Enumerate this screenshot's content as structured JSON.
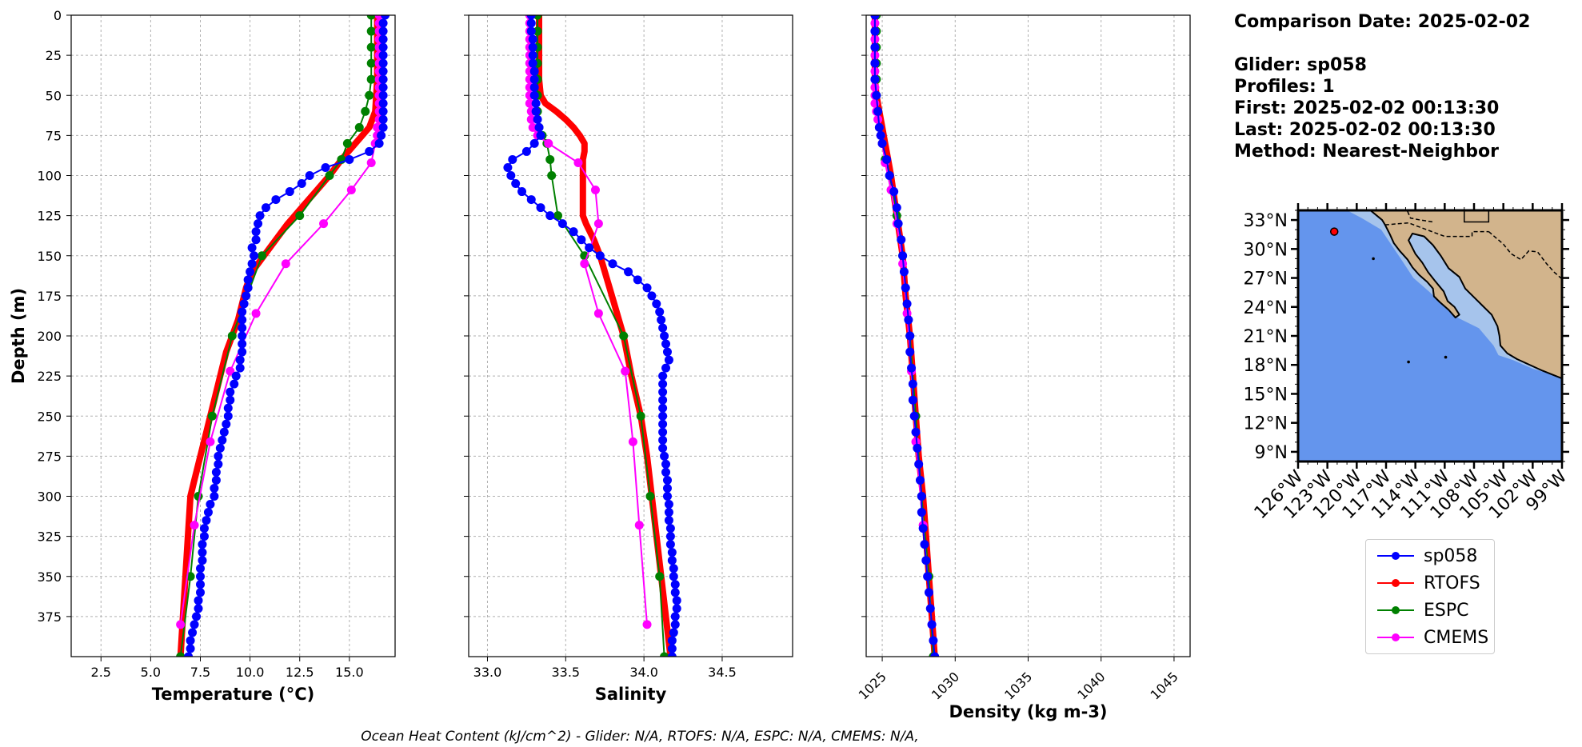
{
  "title_info": {
    "comparison_date": "Comparison Date: 2025-02-02",
    "glider": "Glider: sp058",
    "profiles": "Profiles: 1",
    "first": "First: 2025-02-02 00:13:30",
    "last": "Last: 2025-02-02 00:13:30",
    "method": "Method: Nearest-Neighbor"
  },
  "footer": "Ocean Heat Content (kJ/cm^2) - Glider: N/A,  RTOFS: N/A,  ESPC: N/A,  CMEMS: N/A,",
  "colors": {
    "sp058": "#0000ff",
    "RTOFS": "#ff0000",
    "ESPC": "#008000",
    "CMEMS": "#ff00ff",
    "cyan": "#00e5ee",
    "ocean": "#6495ed",
    "land": "#d2b48c",
    "shelf": "#a6c4ec"
  },
  "legend": [
    {
      "label": "sp058",
      "color": "#0000ff"
    },
    {
      "label": "RTOFS",
      "color": "#ff0000"
    },
    {
      "label": "ESPC",
      "color": "#008000"
    },
    {
      "label": "CMEMS",
      "color": "#ff00ff"
    }
  ],
  "map": {
    "lat_ticks": [
      "33°N",
      "30°N",
      "27°N",
      "24°N",
      "21°N",
      "18°N",
      "15°N",
      "12°N",
      "9°N"
    ],
    "lat_values": [
      33,
      30,
      27,
      24,
      21,
      18,
      15,
      12,
      9
    ],
    "lon_ticks": [
      "126°W",
      "123°W",
      "120°W",
      "117°W",
      "114°W",
      "111°W",
      "108°W",
      "105°W",
      "102°W",
      "99°W"
    ],
    "lon_values": [
      -126,
      -123,
      -120,
      -117,
      -114,
      -111,
      -108,
      -105,
      -102,
      -99
    ],
    "extent": {
      "lon": [
        -126,
        -99
      ],
      "lat": [
        8,
        34
      ]
    },
    "glider_position": {
      "lon": -122.3,
      "lat": 31.8
    }
  },
  "chart_data": [
    {
      "type": "line",
      "xlabel": "Temperature (°C)",
      "ylabel": "Depth (m)",
      "xlim": [
        1.0,
        17.3
      ],
      "ylim": [
        400,
        0
      ],
      "xticks": [
        2.5,
        5.0,
        7.5,
        10.0,
        12.5,
        15.0
      ],
      "yticks": [
        0,
        25,
        50,
        75,
        100,
        125,
        150,
        175,
        200,
        225,
        250,
        275,
        300,
        325,
        350,
        375
      ],
      "grid": true,
      "series": [
        {
          "name": "sp058",
          "depth": [
            0,
            5,
            10,
            15,
            20,
            25,
            30,
            35,
            40,
            45,
            50,
            55,
            60,
            65,
            70,
            75,
            80,
            85,
            90,
            95,
            100,
            105,
            110,
            115,
            120,
            125,
            130,
            135,
            140,
            145,
            150,
            155,
            160,
            165,
            170,
            175,
            180,
            185,
            190,
            195,
            200,
            205,
            210,
            215,
            220,
            225,
            230,
            235,
            240,
            245,
            250,
            255,
            260,
            265,
            270,
            275,
            280,
            285,
            290,
            295,
            300,
            305,
            310,
            315,
            320,
            325,
            330,
            335,
            340,
            345,
            350,
            355,
            360,
            365,
            370,
            375,
            380,
            385,
            390,
            395,
            400
          ],
          "values": [
            16.8,
            16.7,
            16.7,
            16.7,
            16.7,
            16.7,
            16.7,
            16.7,
            16.7,
            16.7,
            16.7,
            16.7,
            16.7,
            16.7,
            16.7,
            16.6,
            16.5,
            16.0,
            15.0,
            13.8,
            13.0,
            12.6,
            12.0,
            11.3,
            10.8,
            10.5,
            10.4,
            10.3,
            10.3,
            10.1,
            10.2,
            10.1,
            10.0,
            9.9,
            9.9,
            9.8,
            9.7,
            9.6,
            9.6,
            9.6,
            9.6,
            9.6,
            9.6,
            9.5,
            9.5,
            9.3,
            9.2,
            9.0,
            9.0,
            8.9,
            8.9,
            8.8,
            8.7,
            8.6,
            8.5,
            8.4,
            8.4,
            8.3,
            8.3,
            8.2,
            8.2,
            8.0,
            7.9,
            7.8,
            7.7,
            7.7,
            7.6,
            7.6,
            7.6,
            7.5,
            7.5,
            7.5,
            7.5,
            7.4,
            7.4,
            7.3,
            7.2,
            7.1,
            7.0,
            7.0,
            6.9
          ]
        },
        {
          "name": "RTOFS",
          "depth": [
            0,
            20,
            40,
            60,
            70,
            80,
            90,
            100,
            110,
            120,
            130,
            140,
            150,
            160,
            170,
            180,
            190,
            200,
            210,
            220,
            230,
            240,
            250,
            260,
            270,
            280,
            290,
            300,
            320,
            340,
            360,
            380,
            400
          ],
          "values": [
            16.4,
            16.4,
            16.4,
            16.3,
            16.0,
            15.3,
            14.6,
            14.0,
            13.3,
            12.6,
            11.9,
            11.3,
            10.7,
            10.1,
            9.8,
            9.6,
            9.4,
            9.1,
            8.8,
            8.6,
            8.4,
            8.2,
            8.0,
            7.8,
            7.6,
            7.4,
            7.2,
            7.0,
            6.9,
            6.8,
            6.7,
            6.6,
            6.5
          ]
        },
        {
          "name": "ESPC",
          "depth": [
            0,
            10,
            20,
            30,
            40,
            50,
            60,
            70,
            80,
            90,
            100,
            125,
            150,
            200,
            250,
            300,
            350,
            400
          ],
          "values": [
            16.1,
            16.1,
            16.1,
            16.1,
            16.1,
            16.0,
            15.8,
            15.5,
            14.9,
            14.6,
            14.0,
            12.5,
            10.6,
            9.1,
            8.1,
            7.4,
            7.0,
            6.5
          ]
        },
        {
          "name": "CMEMS",
          "depth": [
            0,
            5,
            10,
            15,
            20,
            25,
            30,
            35,
            40,
            45,
            50,
            55,
            60,
            65,
            70,
            75,
            80,
            92,
            109,
            130,
            155,
            186,
            222,
            266,
            318,
            380
          ],
          "values": [
            16.5,
            16.5,
            16.5,
            16.5,
            16.5,
            16.5,
            16.5,
            16.5,
            16.5,
            16.5,
            16.5,
            16.5,
            16.5,
            16.5,
            16.4,
            16.4,
            16.3,
            16.1,
            15.1,
            13.7,
            11.8,
            10.3,
            9.0,
            8.0,
            7.2,
            6.5
          ]
        }
      ]
    },
    {
      "type": "line",
      "xlabel": "Salinity",
      "ylabel": "",
      "xlim": [
        32.88,
        34.95
      ],
      "ylim": [
        400,
        0
      ],
      "xticks": [
        33.0,
        33.5,
        34.0,
        34.5
      ],
      "yticks": [
        0,
        25,
        50,
        75,
        100,
        125,
        150,
        175,
        200,
        225,
        250,
        275,
        300,
        325,
        350,
        375
      ],
      "grid": true,
      "series": [
        {
          "name": "sp058",
          "depth": [
            0,
            5,
            10,
            15,
            20,
            25,
            30,
            35,
            40,
            45,
            50,
            55,
            60,
            65,
            70,
            75,
            80,
            85,
            90,
            95,
            100,
            105,
            110,
            115,
            120,
            125,
            130,
            135,
            140,
            145,
            150,
            155,
            160,
            165,
            170,
            175,
            180,
            185,
            190,
            195,
            200,
            205,
            210,
            215,
            220,
            225,
            230,
            235,
            240,
            245,
            250,
            255,
            260,
            265,
            270,
            275,
            280,
            285,
            290,
            295,
            300,
            305,
            310,
            315,
            320,
            325,
            330,
            335,
            340,
            345,
            350,
            355,
            360,
            365,
            370,
            375,
            380,
            385,
            390,
            395,
            400
          ],
          "values": [
            33.28,
            33.28,
            33.28,
            33.29,
            33.29,
            33.29,
            33.29,
            33.3,
            33.3,
            33.3,
            33.3,
            33.31,
            33.31,
            33.32,
            33.33,
            33.34,
            33.3,
            33.25,
            33.16,
            33.13,
            33.15,
            33.18,
            33.22,
            33.28,
            33.34,
            33.4,
            33.48,
            33.55,
            33.6,
            33.65,
            33.72,
            33.8,
            33.9,
            33.96,
            34.02,
            34.05,
            34.08,
            34.1,
            34.11,
            34.12,
            34.13,
            34.14,
            34.15,
            34.16,
            34.14,
            34.12,
            34.12,
            34.12,
            34.12,
            34.12,
            34.12,
            34.12,
            34.12,
            34.12,
            34.12,
            34.13,
            34.14,
            34.14,
            34.15,
            34.15,
            34.15,
            34.16,
            34.16,
            34.16,
            34.17,
            34.17,
            34.17,
            34.18,
            34.18,
            34.19,
            34.19,
            34.2,
            34.2,
            34.21,
            34.21,
            34.2,
            34.2,
            34.19,
            34.18,
            34.18,
            34.18
          ]
        },
        {
          "name": "RTOFS",
          "depth": [
            0,
            20,
            40,
            50,
            55,
            60,
            65,
            70,
            75,
            80,
            85,
            90,
            100,
            110,
            120,
            125,
            130,
            140,
            150,
            160,
            170,
            180,
            190,
            200,
            225,
            250,
            275,
            300,
            325,
            350,
            375,
            400
          ],
          "values": [
            33.33,
            33.33,
            33.33,
            33.34,
            33.37,
            33.44,
            33.5,
            33.55,
            33.59,
            33.62,
            33.62,
            33.61,
            33.61,
            33.61,
            33.61,
            33.61,
            33.63,
            33.68,
            33.72,
            33.75,
            33.78,
            33.81,
            33.84,
            33.87,
            33.92,
            33.98,
            34.02,
            34.05,
            34.08,
            34.11,
            34.14,
            34.17
          ]
        },
        {
          "name": "ESPC",
          "depth": [
            0,
            10,
            20,
            30,
            40,
            50,
            60,
            70,
            75,
            80,
            90,
            100,
            125,
            150,
            200,
            250,
            300,
            350,
            400
          ],
          "values": [
            33.32,
            33.32,
            33.32,
            33.32,
            33.32,
            33.32,
            33.32,
            33.33,
            33.35,
            33.38,
            33.4,
            33.41,
            33.45,
            33.62,
            33.87,
            33.98,
            34.04,
            34.1,
            34.13
          ]
        },
        {
          "name": "CMEMS",
          "depth": [
            0,
            5,
            10,
            15,
            20,
            25,
            30,
            35,
            40,
            45,
            50,
            55,
            60,
            65,
            70,
            75,
            80,
            92,
            109,
            130,
            155,
            186,
            222,
            266,
            318,
            380
          ],
          "values": [
            33.27,
            33.27,
            33.27,
            33.27,
            33.27,
            33.27,
            33.27,
            33.27,
            33.27,
            33.27,
            33.27,
            33.27,
            33.28,
            33.28,
            33.29,
            33.32,
            33.39,
            33.58,
            33.69,
            33.71,
            33.62,
            33.71,
            33.88,
            33.93,
            33.97,
            34.02
          ]
        }
      ]
    },
    {
      "type": "line",
      "xlabel": "Density (kg m-3)",
      "ylabel": "",
      "xlim": [
        1023.9,
        1046.1
      ],
      "ylim": [
        400,
        0
      ],
      "xticks": [
        1025,
        1030,
        1035,
        1040,
        1045
      ],
      "yticks": [
        0,
        25,
        50,
        75,
        100,
        125,
        150,
        175,
        200,
        225,
        250,
        275,
        300,
        325,
        350,
        375
      ],
      "grid": true,
      "series": [
        {
          "name": "sp058",
          "depth": [
            0,
            10,
            20,
            30,
            40,
            50,
            60,
            70,
            75,
            80,
            90,
            100,
            110,
            120,
            130,
            140,
            150,
            160,
            170,
            180,
            190,
            200,
            210,
            220,
            230,
            240,
            250,
            260,
            270,
            280,
            290,
            300,
            310,
            320,
            330,
            340,
            350,
            360,
            370,
            380,
            390,
            400
          ],
          "values": [
            1024.5,
            1024.5,
            1024.5,
            1024.5,
            1024.5,
            1024.6,
            1024.7,
            1024.8,
            1024.9,
            1025.0,
            1025.3,
            1025.5,
            1025.8,
            1026.0,
            1026.1,
            1026.3,
            1026.4,
            1026.5,
            1026.6,
            1026.7,
            1026.8,
            1026.9,
            1026.9,
            1027.0,
            1027.1,
            1027.1,
            1027.2,
            1027.3,
            1027.4,
            1027.5,
            1027.6,
            1027.7,
            1027.7,
            1027.8,
            1027.9,
            1028.0,
            1028.1,
            1028.2,
            1028.3,
            1028.4,
            1028.5,
            1028.6
          ]
        },
        {
          "name": "RTOFS",
          "depth": [
            0,
            20,
            40,
            50,
            60,
            70,
            80,
            90,
            100,
            125,
            150,
            175,
            200,
            225,
            250,
            275,
            300,
            325,
            350,
            375,
            400
          ],
          "values": [
            1024.5,
            1024.5,
            1024.5,
            1024.6,
            1024.8,
            1025.0,
            1025.2,
            1025.4,
            1025.6,
            1026.0,
            1026.4,
            1026.6,
            1026.9,
            1027.1,
            1027.3,
            1027.5,
            1027.8,
            1028.0,
            1028.2,
            1028.4,
            1028.6
          ]
        },
        {
          "name": "ESPC",
          "depth": [
            0,
            10,
            20,
            30,
            40,
            50,
            60,
            70,
            80,
            90,
            100,
            125,
            150,
            200,
            250,
            300,
            350,
            400
          ],
          "values": [
            1024.6,
            1024.6,
            1024.6,
            1024.6,
            1024.6,
            1024.6,
            1024.7,
            1024.8,
            1025.0,
            1025.2,
            1025.5,
            1026.0,
            1026.4,
            1026.9,
            1027.3,
            1027.7,
            1028.2,
            1028.5
          ]
        },
        {
          "name": "CMEMS",
          "depth": [
            0,
            5,
            10,
            15,
            20,
            25,
            30,
            35,
            40,
            45,
            50,
            55,
            60,
            65,
            70,
            75,
            80,
            92,
            109,
            130,
            155,
            186,
            222,
            266,
            318,
            380
          ],
          "values": [
            1024.5,
            1024.5,
            1024.5,
            1024.5,
            1024.5,
            1024.5,
            1024.5,
            1024.5,
            1024.5,
            1024.5,
            1024.5,
            1024.5,
            1024.6,
            1024.7,
            1024.8,
            1024.9,
            1025.0,
            1025.2,
            1025.6,
            1026.0,
            1026.4,
            1026.7,
            1027.0,
            1027.3,
            1027.8,
            1028.4
          ]
        }
      ]
    }
  ]
}
